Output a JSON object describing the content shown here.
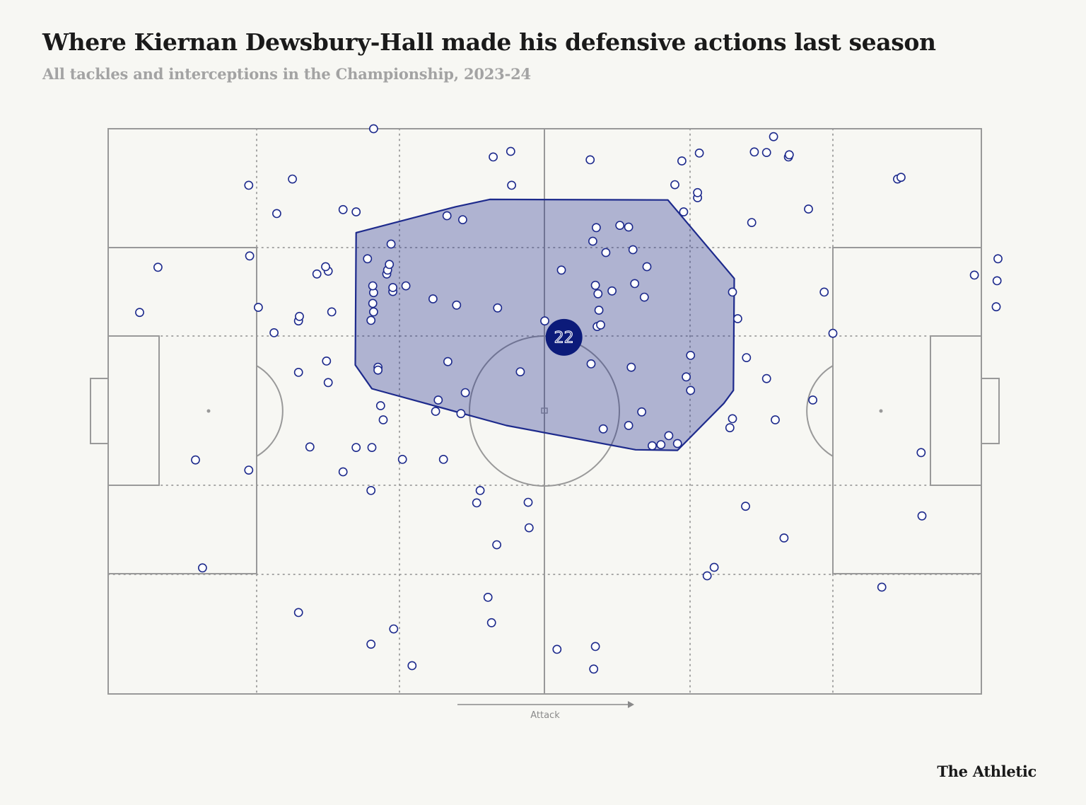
{
  "header": {
    "title": "Where Kiernan Dewsbury-Hall made his defensive actions last season",
    "subtitle": "All tackles and interceptions in the Championship, 2023-24"
  },
  "footer": {
    "brand": "The Athletic"
  },
  "colors": {
    "accent": "#1d2a8c",
    "badge": "#0c1b7a",
    "pitch_lines": "#999999",
    "background": "#f7f7f3"
  },
  "chart_data": {
    "type": "scatter",
    "title": "Where Kiernan Dewsbury-Hall made his defensive actions last season",
    "subtitle": "All tackles and interceptions in the Championship, 2023-24",
    "direction_label": "Attack",
    "player_number": "22",
    "player_average_position": [
      52.2,
      36.9
    ],
    "x_range": [
      0,
      100
    ],
    "y_range": [
      0,
      100
    ],
    "points": [
      [
        3.6,
        32.5
      ],
      [
        5.7,
        24.5
      ],
      [
        10.0,
        58.6
      ],
      [
        10.8,
        77.7
      ],
      [
        16.1,
        10.0
      ],
      [
        16.1,
        60.4
      ],
      [
        16.2,
        22.5
      ],
      [
        17.2,
        31.6
      ],
      [
        19.0,
        36.1
      ],
      [
        19.3,
        15.0
      ],
      [
        21.1,
        8.9
      ],
      [
        21.8,
        34.0
      ],
      [
        21.8,
        85.6
      ],
      [
        21.8,
        43.1
      ],
      [
        21.9,
        33.2
      ],
      [
        23.1,
        56.3
      ],
      [
        23.9,
        25.7
      ],
      [
        25.2,
        25.2
      ],
      [
        25.0,
        41.1
      ],
      [
        25.2,
        44.9
      ],
      [
        24.9,
        24.4
      ],
      [
        25.6,
        32.4
      ],
      [
        26.9,
        14.3
      ],
      [
        26.9,
        60.7
      ],
      [
        28.4,
        56.4
      ],
      [
        28.4,
        14.7
      ],
      [
        30.1,
        64.0
      ],
      [
        30.1,
        91.2
      ],
      [
        30.2,
        56.4
      ],
      [
        30.1,
        33.9
      ],
      [
        30.3,
        30.9
      ],
      [
        30.4,
        0.0
      ],
      [
        30.4,
        29.0
      ],
      [
        30.9,
        42.2
      ],
      [
        30.9,
        42.7
      ],
      [
        29.7,
        23.0
      ],
      [
        30.3,
        27.8
      ],
      [
        30.4,
        32.4
      ],
      [
        31.9,
        25.7
      ],
      [
        32.0,
        25.0
      ],
      [
        32.2,
        24.0
      ],
      [
        32.6,
        28.8
      ],
      [
        31.2,
        49.0
      ],
      [
        31.5,
        51.5
      ],
      [
        32.7,
        88.5
      ],
      [
        32.4,
        20.4
      ],
      [
        32.6,
        28.1
      ],
      [
        33.7,
        58.5
      ],
      [
        34.1,
        27.8
      ],
      [
        34.8,
        95.0
      ],
      [
        37.2,
        30.1
      ],
      [
        37.5,
        50.0
      ],
      [
        37.8,
        48.0
      ],
      [
        38.4,
        58.5
      ],
      [
        38.8,
        15.4
      ],
      [
        38.9,
        41.2
      ],
      [
        39.9,
        31.2
      ],
      [
        40.6,
        16.1
      ],
      [
        40.4,
        50.4
      ],
      [
        40.9,
        46.7
      ],
      [
        42.6,
        64.0
      ],
      [
        42.2,
        66.2
      ],
      [
        43.5,
        82.9
      ],
      [
        43.9,
        87.4
      ],
      [
        44.1,
        5.0
      ],
      [
        44.5,
        73.6
      ],
      [
        44.6,
        31.7
      ],
      [
        46.1,
        4.0
      ],
      [
        46.2,
        10.0
      ],
      [
        47.2,
        43.0
      ],
      [
        48.1,
        66.1
      ],
      [
        48.2,
        70.6
      ],
      [
        50.0,
        34.0
      ],
      [
        51.9,
        25.0
      ],
      [
        52.3,
        34.8
      ],
      [
        52.4,
        34.5
      ],
      [
        51.4,
        92.1
      ],
      [
        55.2,
        5.5
      ],
      [
        55.3,
        41.6
      ],
      [
        55.8,
        27.7
      ],
      [
        55.5,
        19.9
      ],
      [
        55.8,
        91.6
      ],
      [
        55.6,
        95.6
      ],
      [
        55.9,
        17.5
      ],
      [
        56.1,
        29.2
      ],
      [
        56.2,
        32.1
      ],
      [
        56.0,
        35.0
      ],
      [
        56.4,
        34.7
      ],
      [
        56.7,
        53.1
      ],
      [
        57.0,
        21.9
      ],
      [
        57.7,
        28.7
      ],
      [
        58.6,
        17.1
      ],
      [
        59.6,
        17.4
      ],
      [
        59.9,
        42.2
      ],
      [
        59.6,
        52.5
      ],
      [
        60.1,
        21.4
      ],
      [
        61.1,
        50.1
      ],
      [
        61.4,
        29.8
      ],
      [
        60.3,
        27.4
      ],
      [
        61.7,
        24.4
      ],
      [
        62.3,
        56.1
      ],
      [
        63.3,
        55.9
      ],
      [
        64.2,
        54.3
      ],
      [
        64.9,
        9.9
      ],
      [
        65.2,
        55.7
      ],
      [
        65.7,
        5.7
      ],
      [
        65.9,
        14.7
      ],
      [
        66.2,
        43.9
      ],
      [
        66.7,
        40.1
      ],
      [
        66.7,
        46.3
      ],
      [
        67.7,
        4.3
      ],
      [
        67.5,
        12.2
      ],
      [
        67.5,
        11.3
      ],
      [
        68.6,
        79.1
      ],
      [
        69.4,
        77.6
      ],
      [
        71.2,
        52.9
      ],
      [
        71.5,
        51.3
      ],
      [
        71.5,
        28.9
      ],
      [
        72.1,
        33.6
      ],
      [
        73.1,
        40.5
      ],
      [
        73.0,
        66.8
      ],
      [
        73.7,
        16.6
      ],
      [
        74.0,
        4.1
      ],
      [
        75.4,
        4.2
      ],
      [
        75.4,
        44.2
      ],
      [
        76.4,
        51.5
      ],
      [
        77.4,
        72.4
      ],
      [
        77.9,
        5.0
      ],
      [
        78.0,
        4.6
      ],
      [
        80.2,
        14.2
      ],
      [
        80.7,
        48.0
      ],
      [
        76.2,
        1.4
      ],
      [
        83.0,
        36.2
      ],
      [
        90.4,
        8.9
      ],
      [
        82.0,
        28.9
      ],
      [
        88.6,
        81.1
      ],
      [
        90.8,
        8.6
      ],
      [
        93.1,
        57.3
      ],
      [
        93.2,
        68.5
      ],
      [
        99.2,
        25.9
      ],
      [
        101.9,
        23.0
      ],
      [
        101.7,
        31.5
      ],
      [
        101.8,
        26.9
      ]
    ],
    "hull": [
      [
        28.4,
        18.4
      ],
      [
        39.8,
        13.8
      ],
      [
        43.7,
        12.5
      ],
      [
        64.1,
        12.6
      ],
      [
        64.1,
        12.6
      ],
      [
        71.7,
        26.5
      ],
      [
        71.6,
        46.3
      ],
      [
        70.5,
        48.6
      ],
      [
        65.2,
        56.9
      ],
      [
        60.4,
        56.8
      ],
      [
        45.6,
        52.5
      ],
      [
        30.2,
        46.0
      ],
      [
        28.3,
        41.8
      ],
      [
        28.4,
        18.4
      ]
    ]
  }
}
